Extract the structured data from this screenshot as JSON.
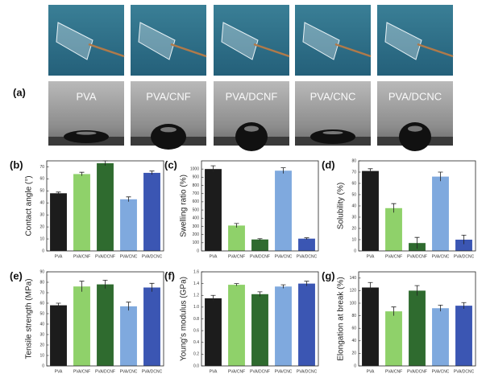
{
  "photo_panel": {
    "label": "(a)",
    "samples": [
      "PVA",
      "PVA/CNF",
      "PVA/DCNF",
      "PVA/CNC",
      "PVA/DCNC"
    ]
  },
  "chart_data": [
    {
      "type": "bar",
      "panel": "(b)",
      "ylabel": "Contact angle (°)",
      "categories": [
        "PVA",
        "PVA/CNF",
        "PVA/DCNF",
        "PVA/CNC",
        "PVA/DCNC"
      ],
      "values": [
        48,
        64,
        73,
        43,
        65
      ],
      "errors": [
        1,
        1.5,
        2,
        2,
        1.5
      ],
      "colors": [
        "#1c1c1c",
        "#8fd16a",
        "#2f6b2f",
        "#7fa9de",
        "#3b56b3"
      ],
      "ylim": [
        0,
        75
      ],
      "yticks": [
        0,
        10,
        20,
        30,
        40,
        50,
        60,
        70
      ]
    },
    {
      "type": "bar",
      "panel": "(c)",
      "ylabel": "Swelling ratio (%)",
      "categories": [
        "PVA",
        "PVA/CNF",
        "PVA/DCNF",
        "PVA/CNC",
        "PVA/DCNC"
      ],
      "values": [
        1000,
        310,
        140,
        980,
        150
      ],
      "errors": [
        40,
        25,
        10,
        35,
        10
      ],
      "colors": [
        "#1c1c1c",
        "#8fd16a",
        "#2f6b2f",
        "#7fa9de",
        "#3b56b3"
      ],
      "ylim": [
        0,
        1100
      ],
      "yticks": [
        0,
        100,
        200,
        300,
        400,
        500,
        600,
        700,
        800,
        900,
        1000
      ]
    },
    {
      "type": "bar",
      "panel": "(d)",
      "ylabel": "Solubility (%)",
      "categories": [
        "PVA",
        "PVA/CNF",
        "PVA/DCNF",
        "PVA/CNC",
        "PVA/DCNC"
      ],
      "values": [
        71,
        38,
        7,
        66,
        10
      ],
      "errors": [
        2,
        4,
        5,
        4,
        4
      ],
      "colors": [
        "#1c1c1c",
        "#8fd16a",
        "#2f6b2f",
        "#7fa9de",
        "#3b56b3"
      ],
      "ylim": [
        0,
        80
      ],
      "yticks": [
        0,
        10,
        20,
        30,
        40,
        50,
        60,
        70,
        80
      ]
    },
    {
      "type": "bar",
      "panel": "(e)",
      "ylabel": "Tensile strength (MPa)",
      "categories": [
        "PVA",
        "PVA/CNF",
        "PVA/DCNF",
        "PVA/CNC",
        "PVA/DCNC"
      ],
      "values": [
        58,
        76,
        78,
        57,
        75
      ],
      "errors": [
        2,
        5,
        4,
        4,
        4
      ],
      "colors": [
        "#1c1c1c",
        "#8fd16a",
        "#2f6b2f",
        "#7fa9de",
        "#3b56b3"
      ],
      "ylim": [
        0,
        90
      ],
      "yticks": [
        0,
        10,
        20,
        30,
        40,
        50,
        60,
        70,
        80,
        90
      ]
    },
    {
      "type": "bar",
      "panel": "(f)",
      "ylabel": "Young's modulus (GPa)",
      "categories": [
        "PVA",
        "PVA/CNF",
        "PVA/DCNF",
        "PVA/CNC",
        "PVA/DCNC"
      ],
      "values": [
        1.15,
        1.38,
        1.22,
        1.35,
        1.4
      ],
      "errors": [
        0.05,
        0.02,
        0.04,
        0.03,
        0.04
      ],
      "colors": [
        "#1c1c1c",
        "#8fd16a",
        "#2f6b2f",
        "#7fa9de",
        "#3b56b3"
      ],
      "ylim": [
        0,
        1.6
      ],
      "yticks": [
        {
          "value": 0,
          "label": "0.0"
        },
        {
          "value": 0.2,
          "label": "0.2"
        },
        {
          "value": 0.4,
          "label": "0.4"
        },
        {
          "value": 0.6,
          "label": "0.6"
        },
        {
          "value": 0.8,
          "label": "0.8"
        },
        {
          "value": 1,
          "label": "1.0"
        },
        {
          "value": 1.2,
          "label": "1.2"
        },
        {
          "value": 1.4,
          "label": "1.4"
        },
        {
          "value": 1.6,
          "label": "1.6"
        }
      ]
    },
    {
      "type": "bar",
      "panel": "(g)",
      "ylabel": "Elongation at break (%)",
      "categories": [
        "PVA",
        "PVA/CNF",
        "PVA/DCNF",
        "PVA/CNC",
        "PVA/DCNC"
      ],
      "values": [
        125,
        87,
        120,
        92,
        96
      ],
      "errors": [
        8,
        7,
        8,
        5,
        5
      ],
      "colors": [
        "#1c1c1c",
        "#8fd16a",
        "#2f6b2f",
        "#7fa9de",
        "#3b56b3"
      ],
      "ylim": [
        0,
        150
      ],
      "yticks": [
        0,
        20,
        40,
        60,
        80,
        100,
        120,
        140
      ]
    }
  ]
}
